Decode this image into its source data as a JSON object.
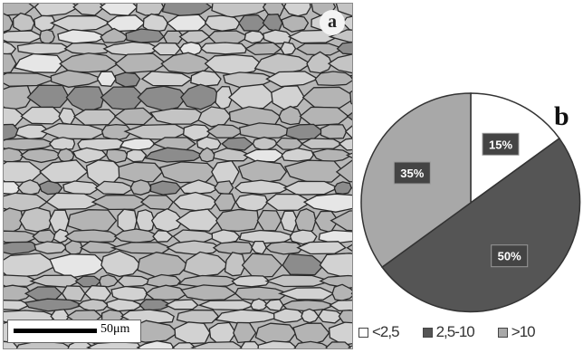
{
  "panel_a": {
    "label": "a",
    "scale_bar_text": "50μm"
  },
  "panel_b": {
    "label": "b"
  },
  "chart_data": {
    "type": "pie",
    "slices": [
      {
        "name": "<2,5",
        "value": 15,
        "label": "15%",
        "color": "#ffffff"
      },
      {
        "name": "2,5-10",
        "value": 50,
        "label": "50%",
        "color": "#555555"
      },
      {
        "name": ">10",
        "value": 35,
        "label": "35%",
        "color": "#a8a8a8"
      }
    ],
    "legend_placement": "bottom",
    "start_angle": "top, clockwise"
  },
  "colors": {
    "grain_fill_light": "#d2d2d2",
    "grain_fill_mid": "#b4b4b4",
    "grain_fill_dark": "#8c8c8c",
    "grain_boundary": "#2a2a2a",
    "data_label_bg": "#444444"
  }
}
